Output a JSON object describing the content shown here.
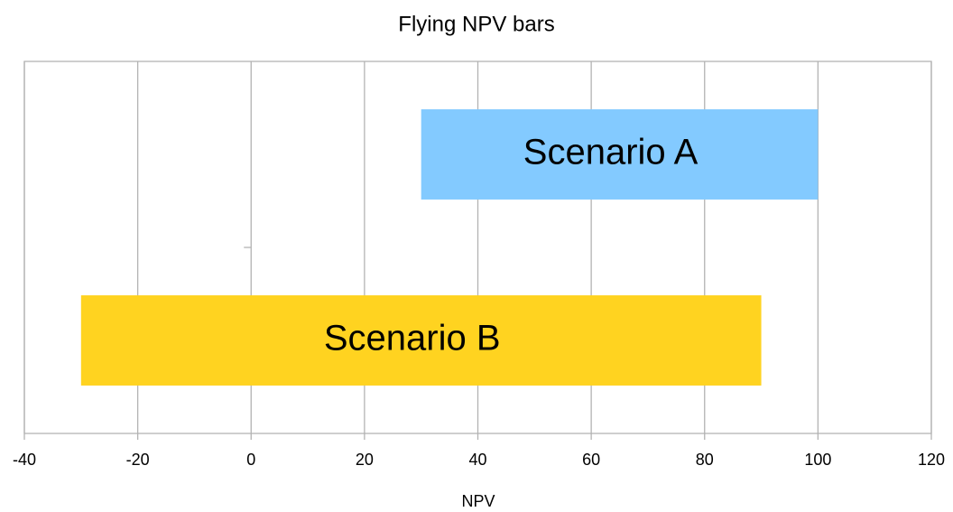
{
  "chart_data": {
    "type": "floating-bar",
    "title": "Flying NPV bars",
    "x_label": "NPV",
    "categories": [
      "Scenario A",
      "Scenario B"
    ],
    "low": [
      30,
      -30
    ],
    "high": [
      100,
      90
    ],
    "colors": [
      "#83caff",
      "#ffd320"
    ],
    "xlim": [
      -40,
      120
    ],
    "xticks": [
      -40,
      -20,
      0,
      20,
      40,
      60,
      80,
      100,
      120
    ],
    "grid": true
  }
}
